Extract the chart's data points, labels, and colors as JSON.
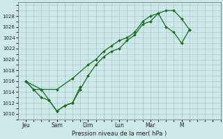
{
  "background_color": "#cce8e8",
  "grid_color": "#a8cccc",
  "line_color": "#1a6b1a",
  "marker_color": "#1a6b1a",
  "xlabel": "Pression niveau de la mer( hPa )",
  "ylim": [
    1009,
    1030.5
  ],
  "ytick_vals": [
    1010,
    1012,
    1014,
    1016,
    1018,
    1020,
    1022,
    1024,
    1026,
    1028
  ],
  "xtick_positions": [
    0,
    2,
    4,
    6,
    8,
    10,
    12
  ],
  "xtick_labels": [
    "Jeu",
    "Sam",
    "Dim",
    "Lun",
    "Mar",
    "M",
    ""
  ],
  "xlim": [
    -0.5,
    12.5
  ],
  "series1_x": [
    0,
    0.5,
    1,
    1.5,
    2,
    2.5,
    3,
    3.5,
    4,
    4.5,
    5,
    5.5,
    6,
    6.5,
    7,
    7.5,
    8,
    8.5,
    9,
    9.5,
    10,
    10.5
  ],
  "series1_y": [
    1016.0,
    1014.5,
    1014.5,
    1012.5,
    1010.5,
    1011.5,
    1012.0,
    1014.5,
    1017.0,
    1019.0,
    1020.5,
    1021.5,
    1022.0,
    1023.5,
    1024.5,
    1026.5,
    1027.0,
    1028.5,
    1029.0,
    1029.0,
    1027.5,
    1025.5
  ],
  "series2_x": [
    0,
    1,
    2,
    3,
    4,
    4.5,
    5,
    5.5,
    6,
    6.5,
    7,
    7.5,
    8,
    8.5,
    9,
    9.5,
    10,
    10.5
  ],
  "series2_y": [
    1016.0,
    1014.5,
    1014.5,
    1016.5,
    1019.0,
    1020.0,
    1021.5,
    1022.5,
    1023.5,
    1024.0,
    1025.0,
    1027.0,
    1028.0,
    1028.5,
    1026.0,
    1025.0,
    1023.0,
    1025.5
  ],
  "series3_x": [
    0,
    0.5,
    1,
    1.5,
    2,
    2.5,
    3,
    3.5
  ],
  "series3_y": [
    1016.0,
    1014.5,
    1013.0,
    1012.5,
    1010.5,
    1011.5,
    1012.0,
    1015.0
  ]
}
